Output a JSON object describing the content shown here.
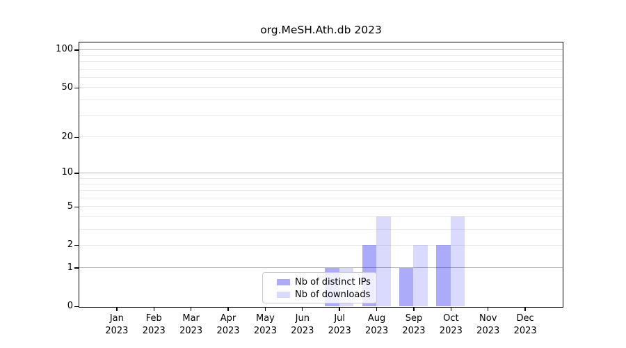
{
  "title": "org.MeSH.Ath.db 2023",
  "chart_data": {
    "type": "bar",
    "title": "org.MeSH.Ath.db 2023",
    "x_months": [
      "Jan",
      "Feb",
      "Mar",
      "Apr",
      "May",
      "Jun",
      "Jul",
      "Aug",
      "Sep",
      "Oct",
      "Nov",
      "Dec"
    ],
    "x_year": "2023",
    "series": [
      {
        "name": "Nb of distinct IPs",
        "color": "rgba(0,0,240,0.33)",
        "values": [
          0,
          0,
          0,
          0,
          0,
          0,
          1,
          2,
          1,
          2,
          0,
          0
        ]
      },
      {
        "name": "Nb of downloads",
        "color": "rgba(0,0,240,0.145)",
        "values": [
          0,
          0,
          0,
          0,
          0,
          0,
          1,
          4,
          2,
          4,
          0,
          0
        ]
      }
    ],
    "y_scale": "log1p",
    "y_ticks": [
      0,
      1,
      2,
      5,
      10,
      20,
      50,
      100
    ],
    "ylim": [
      0,
      113
    ],
    "grid": "horizontal",
    "grid_major_values": [
      1,
      10,
      100
    ],
    "grid_minor_values": [
      2,
      3,
      4,
      5,
      6,
      7,
      8,
      9,
      20,
      30,
      40,
      50,
      60,
      70,
      80,
      90
    ],
    "legend_position": "lower center"
  },
  "colors": {
    "bar_distinct_ips": "rgba(0,0,240,0.33)",
    "bar_downloads": "rgba(0,0,240,0.145)",
    "grid_major": "#b5b5b5",
    "grid_minor": "#e9e9e9",
    "spine": "#000000",
    "legend_border": "#cccccc"
  }
}
